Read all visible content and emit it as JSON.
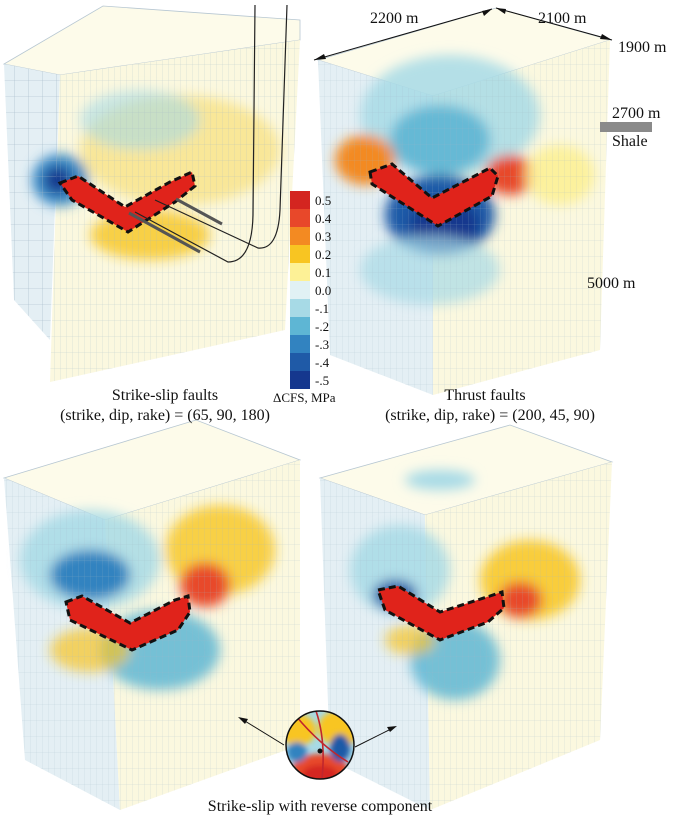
{
  "colors": {
    "box_fill": "#fbf8df",
    "box_side": "#e6eff4",
    "box_top": "#fdfbea",
    "grid": "#9fb6c6",
    "fault_fill": "#e0231b",
    "fault_outline": "#111111",
    "well": "#222222",
    "shale": "#8a8a8a"
  },
  "legend": {
    "title": "ΔCFS, MPa",
    "entries": [
      {
        "label": "0.5",
        "color": "#d42520"
      },
      {
        "label": "0.4",
        "color": "#e8482a"
      },
      {
        "label": "0.3",
        "color": "#f38a22"
      },
      {
        "label": "0.2",
        "color": "#f8c522"
      },
      {
        "label": "0.1",
        "color": "#fdf196"
      },
      {
        "label": "0.0",
        "color": "#e1f1f4"
      },
      {
        "label": "-.1",
        "color": "#a7dae6"
      },
      {
        "label": "-.2",
        "color": "#5eb6d4"
      },
      {
        "label": "-.3",
        "color": "#3283c0"
      },
      {
        "label": "-.4",
        "color": "#1f5aa7"
      },
      {
        "label": "-.5",
        "color": "#15378e"
      }
    ]
  },
  "panels": {
    "top_left": {
      "caption_line1": "Strike-slip faults",
      "caption_line2": "(strike, dip, rake) = (65, 90, 180)"
    },
    "top_right": {
      "caption_line1": "Thrust  faults",
      "caption_line2": "(strike, dip, rake) = (200, 45, 90)"
    },
    "bottom": {
      "caption": "Strike-slip with reverse component"
    }
  },
  "dimensions": {
    "width_label": "2200 m",
    "depth_label": "2100 m",
    "top_depth": "1900 m",
    "shale_depth": "2700 m",
    "shale_label": "Shale",
    "bottom_depth": "5000 m"
  }
}
